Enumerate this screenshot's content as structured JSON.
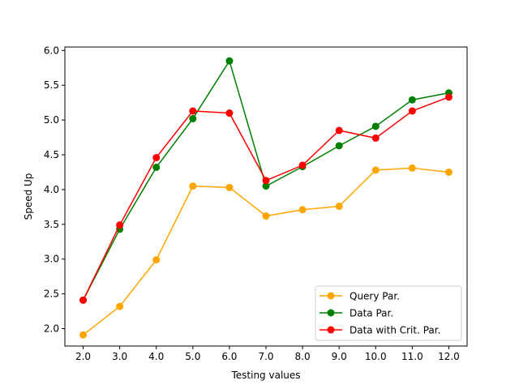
{
  "chart_data": {
    "type": "line",
    "title": "",
    "xlabel": "Testing values",
    "ylabel": "Speed Up",
    "x": [
      2.0,
      3.0,
      4.0,
      5.0,
      6.0,
      7.0,
      8.0,
      9.0,
      10.0,
      11.0,
      12.0
    ],
    "x_tick_labels": [
      "2.0",
      "3.0",
      "4.0",
      "5.0",
      "6.0",
      "7.0",
      "8.0",
      "9.0",
      "10.0",
      "11.0",
      "12.0"
    ],
    "xlim": [
      1.5,
      12.5
    ],
    "ylim": [
      1.75,
      6.05
    ],
    "y_ticks": [
      2.0,
      2.5,
      3.0,
      3.5,
      4.0,
      4.5,
      5.0,
      5.5,
      6.0
    ],
    "y_tick_labels": [
      "2.0",
      "2.5",
      "3.0",
      "3.5",
      "4.0",
      "4.5",
      "5.0",
      "5.5",
      "6.0"
    ],
    "grid": false,
    "legend_position": "lower-right",
    "series": [
      {
        "name": "Query Par.",
        "color": "#ffa500",
        "values": [
          1.91,
          2.32,
          2.99,
          4.05,
          4.03,
          3.62,
          3.71,
          3.76,
          4.28,
          4.31,
          4.25
        ]
      },
      {
        "name": "Data Par.",
        "color": "#008000",
        "values": [
          2.41,
          3.43,
          4.32,
          5.02,
          5.85,
          4.05,
          4.33,
          4.63,
          4.91,
          5.29,
          5.39
        ]
      },
      {
        "name": "Data with Crit. Par.",
        "color": "#ff0000",
        "values": [
          2.41,
          3.49,
          4.46,
          5.13,
          5.1,
          4.13,
          4.35,
          4.85,
          4.74,
          5.13,
          5.33
        ]
      }
    ]
  }
}
